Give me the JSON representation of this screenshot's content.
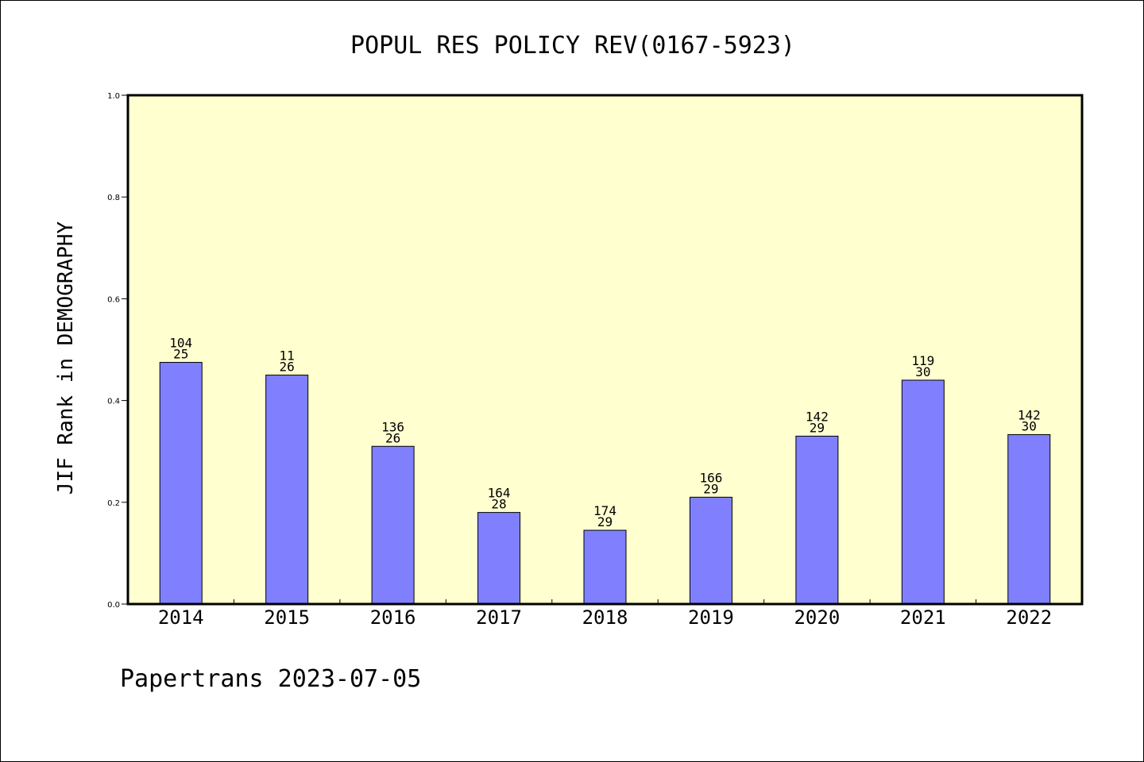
{
  "chart_data": {
    "type": "bar",
    "title": "POPUL RES POLICY REV(0167-5923)",
    "ylabel": "JIF Rank in DEMOGRAPHY",
    "xlabel": "",
    "ylim": [
      0,
      1.0
    ],
    "yticks": [
      "0.0",
      "0.2",
      "0.4",
      "0.6",
      "0.8",
      "1.0"
    ],
    "categories": [
      "2014",
      "2015",
      "2016",
      "2017",
      "2018",
      "2019",
      "2020",
      "2021",
      "2022"
    ],
    "values": [
      0.475,
      0.45,
      0.31,
      0.18,
      0.145,
      0.21,
      0.33,
      0.44,
      0.333
    ],
    "label_top": [
      "104",
      "11",
      "136",
      "164",
      "174",
      "166",
      "142",
      "119",
      "142"
    ],
    "label_bottom": [
      "25",
      "26",
      "26",
      "28",
      "29",
      "29",
      "29",
      "30",
      "30"
    ],
    "grid": false,
    "colors": {
      "plot_background": "#ffffd0",
      "bar_fill": "#8080ff",
      "bar_stroke": "#000000"
    }
  },
  "footer": {
    "text": "Papertrans 2023-07-05"
  }
}
